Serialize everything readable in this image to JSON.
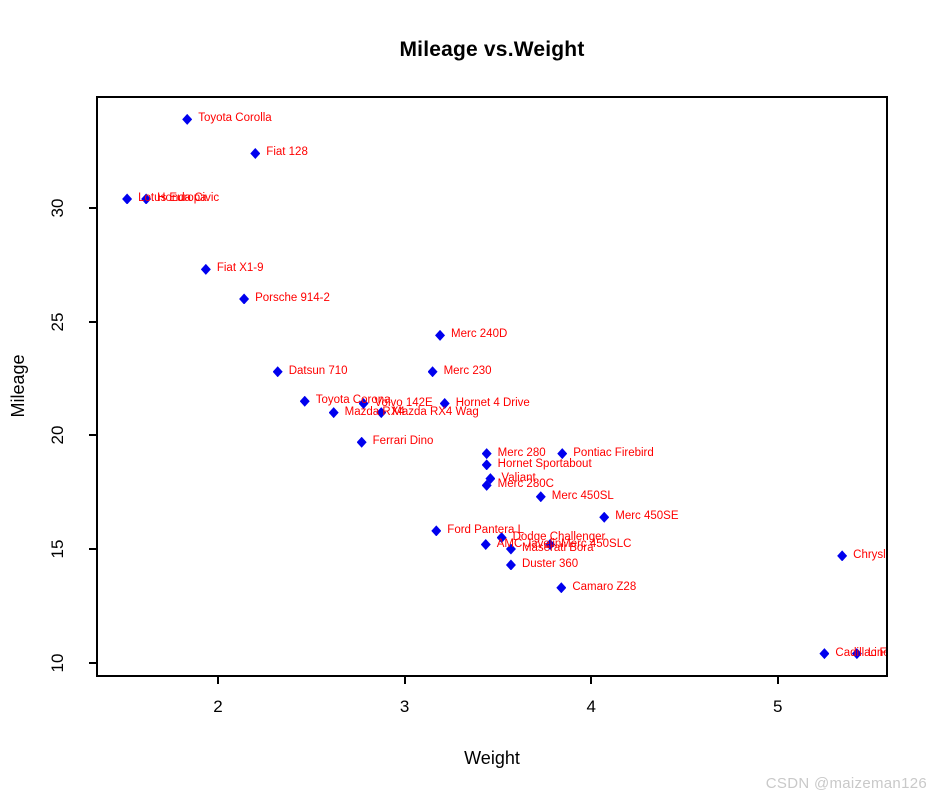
{
  "title": "Mileage vs.Weight",
  "axis": {
    "xlabel": "Weight",
    "ylabel": "Mileage"
  },
  "watermark": "CSDN @maizeman126",
  "colors": {
    "point": "#0000ee",
    "label": "#ff0000",
    "axis_text": "#000000",
    "box": "#000000",
    "watermark": "#c9c9c9",
    "background": "#ffffff"
  },
  "chart_data": {
    "type": "scatter",
    "title": "Mileage vs.Weight",
    "xlabel": "Weight",
    "ylabel": "Mileage",
    "x_ticks": [
      2,
      3,
      4,
      5
    ],
    "y_ticks": [
      10,
      15,
      20,
      25,
      30
    ],
    "xlim": [
      1.357,
      5.58
    ],
    "ylim": [
      9.46,
      34.84
    ],
    "grid": false,
    "legend": "none",
    "marker": "filled-diamond",
    "points": [
      {
        "label": "Mazda RX4",
        "x": 2.62,
        "y": 21.0
      },
      {
        "label": "Mazda RX4 Wag",
        "x": 2.875,
        "y": 21.0
      },
      {
        "label": "Datsun 710",
        "x": 2.32,
        "y": 22.8
      },
      {
        "label": "Hornet 4 Drive",
        "x": 3.215,
        "y": 21.4
      },
      {
        "label": "Hornet Sportabout",
        "x": 3.44,
        "y": 18.7
      },
      {
        "label": "Valiant",
        "x": 3.46,
        "y": 18.1
      },
      {
        "label": "Duster 360",
        "x": 3.57,
        "y": 14.3
      },
      {
        "label": "Merc 240D",
        "x": 3.19,
        "y": 24.4
      },
      {
        "label": "Merc 230",
        "x": 3.15,
        "y": 22.8
      },
      {
        "label": "Merc 280",
        "x": 3.44,
        "y": 19.2
      },
      {
        "label": "Merc 280C",
        "x": 3.44,
        "y": 17.8
      },
      {
        "label": "Merc 450SE",
        "x": 4.07,
        "y": 16.4
      },
      {
        "label": "Merc 450SL",
        "x": 3.73,
        "y": 17.3
      },
      {
        "label": "Merc 450SLC",
        "x": 3.78,
        "y": 15.2
      },
      {
        "label": "Cadillac Fleetwood",
        "x": 5.25,
        "y": 10.4
      },
      {
        "label": "Lincoln Continental",
        "x": 5.424,
        "y": 10.4
      },
      {
        "label": "Chrysler Imperial",
        "x": 5.345,
        "y": 14.7
      },
      {
        "label": "Fiat 128",
        "x": 2.2,
        "y": 32.4
      },
      {
        "label": "Honda Civic",
        "x": 1.615,
        "y": 30.4
      },
      {
        "label": "Toyota Corolla",
        "x": 1.835,
        "y": 33.9
      },
      {
        "label": "Toyota Corona",
        "x": 2.465,
        "y": 21.5
      },
      {
        "label": "Dodge Challenger",
        "x": 3.52,
        "y": 15.5
      },
      {
        "label": "AMC Javelin",
        "x": 3.435,
        "y": 15.2
      },
      {
        "label": "Camaro Z28",
        "x": 3.84,
        "y": 13.3
      },
      {
        "label": "Pontiac Firebird",
        "x": 3.845,
        "y": 19.2
      },
      {
        "label": "Fiat X1-9",
        "x": 1.935,
        "y": 27.3
      },
      {
        "label": "Porsche 914-2",
        "x": 2.14,
        "y": 26.0
      },
      {
        "label": "Lotus Europa",
        "x": 1.513,
        "y": 30.4
      },
      {
        "label": "Ford Pantera L",
        "x": 3.17,
        "y": 15.8
      },
      {
        "label": "Ferrari Dino",
        "x": 2.77,
        "y": 19.7
      },
      {
        "label": "Maserati Bora",
        "x": 3.57,
        "y": 15.0
      },
      {
        "label": "Volvo 142E",
        "x": 2.78,
        "y": 21.4
      }
    ]
  }
}
